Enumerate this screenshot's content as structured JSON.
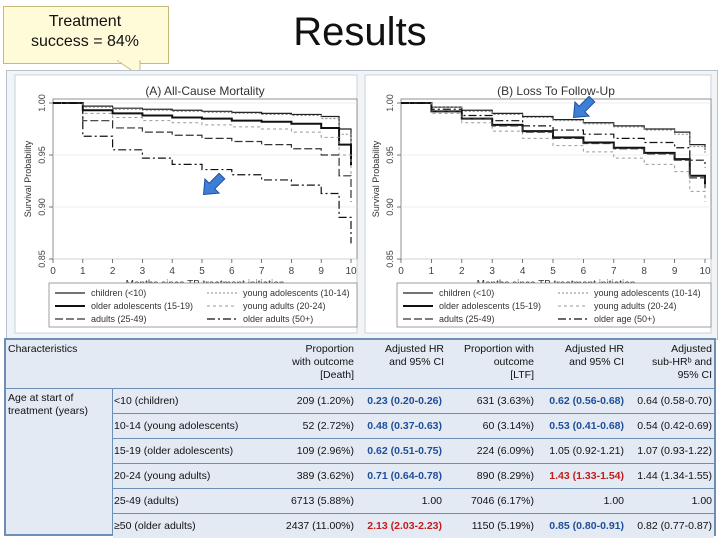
{
  "title": "Results",
  "callout": {
    "line1": "Treatment",
    "line2": "success = 84%"
  },
  "colors": {
    "highlight_blue": "#1f4e9a",
    "highlight_red": "#c31c1c",
    "arrow": "#3d7fd6",
    "table_bg": "#5f82aa"
  },
  "chart_data": [
    {
      "type": "line",
      "title": "(A) All-Cause Mortality",
      "xlabel": "Months since TB treatment initiation",
      "ylabel": "Survival Probability",
      "xlim": [
        0,
        10
      ],
      "ylim": [
        0.85,
        1.0
      ],
      "xticks": [
        0,
        1,
        2,
        3,
        4,
        5,
        6,
        7,
        8,
        9,
        10
      ],
      "yticks": [
        "0.85",
        "0.90",
        "0.95",
        "1.00"
      ],
      "legend": [
        "children (<10)",
        "young adolescents (10-14)",
        "older adolescents (15-19)",
        "young adults (20-24)",
        "adults (25-49)",
        "older adults (50+)"
      ],
      "series": [
        {
          "name": "children (<10)",
          "x": [
            0,
            1,
            2,
            3,
            4,
            5,
            6,
            7,
            8,
            9,
            9.6,
            10
          ],
          "y": [
            1.0,
            0.997,
            0.995,
            0.994,
            0.993,
            0.992,
            0.991,
            0.99,
            0.989,
            0.987,
            0.975,
            0.96
          ]
        },
        {
          "name": "young adolescents (10-14)",
          "x": [
            0,
            1,
            2,
            3,
            4,
            5,
            6,
            7,
            8,
            9,
            9.6,
            10
          ],
          "y": [
            1.0,
            0.996,
            0.994,
            0.993,
            0.992,
            0.991,
            0.99,
            0.989,
            0.988,
            0.985,
            0.97,
            0.955
          ]
        },
        {
          "name": "older adolescents (15-19)",
          "x": [
            0,
            1,
            2,
            3,
            4,
            5,
            6,
            7,
            8,
            9,
            9.6,
            10
          ],
          "y": [
            1.0,
            0.993,
            0.99,
            0.988,
            0.986,
            0.985,
            0.983,
            0.982,
            0.98,
            0.976,
            0.96,
            0.94
          ]
        },
        {
          "name": "young adults (20-24)",
          "x": [
            0,
            1,
            2,
            3,
            4,
            5,
            6,
            7,
            8,
            9,
            9.6,
            10
          ],
          "y": [
            1.0,
            0.99,
            0.986,
            0.983,
            0.981,
            0.979,
            0.977,
            0.975,
            0.972,
            0.967,
            0.95,
            0.93
          ]
        },
        {
          "name": "adults (25-49)",
          "x": [
            0,
            1,
            2,
            3,
            4,
            5,
            6,
            7,
            8,
            9,
            9.6,
            10
          ],
          "y": [
            1.0,
            0.983,
            0.976,
            0.972,
            0.969,
            0.966,
            0.963,
            0.96,
            0.956,
            0.95,
            0.93,
            0.905
          ]
        },
        {
          "name": "older adults (50+)",
          "x": [
            0,
            1,
            2,
            3,
            4,
            5,
            6,
            7,
            8,
            9,
            9.6,
            10
          ],
          "y": [
            1.0,
            0.968,
            0.955,
            0.947,
            0.941,
            0.936,
            0.931,
            0.926,
            0.921,
            0.913,
            0.89,
            0.865
          ]
        }
      ]
    },
    {
      "type": "line",
      "title": "(B) Loss To Follow-Up",
      "xlabel": "Months since TB treatment initiation",
      "ylabel": "Survival Probability",
      "xlim": [
        0,
        10
      ],
      "ylim": [
        0.85,
        1.0
      ],
      "xticks": [
        0,
        1,
        2,
        3,
        4,
        5,
        6,
        7,
        8,
        9,
        10
      ],
      "yticks": [
        "0.85",
        "0.90",
        "0.95",
        "1.00"
      ],
      "legend": [
        "children (<10)",
        "young adolescents (10-14)",
        "older adolescents (15-19)",
        "young adults (20-24)",
        "adults (25-49)",
        "older age (50+)"
      ],
      "series": [
        {
          "name": "children (<10)",
          "x": [
            0,
            1,
            2,
            3,
            4,
            5,
            6,
            7,
            8,
            9,
            9.5,
            10
          ],
          "y": [
            1.0,
            0.996,
            0.993,
            0.99,
            0.987,
            0.984,
            0.981,
            0.978,
            0.975,
            0.972,
            0.96,
            0.955
          ]
        },
        {
          "name": "young adolescents (10-14)",
          "x": [
            0,
            1,
            2,
            3,
            4,
            5,
            6,
            7,
            8,
            9,
            9.5,
            10
          ],
          "y": [
            1.0,
            0.996,
            0.992,
            0.989,
            0.986,
            0.983,
            0.98,
            0.977,
            0.974,
            0.97,
            0.958,
            0.952
          ]
        },
        {
          "name": "older adolescents (15-19)",
          "x": [
            0,
            1,
            2,
            3,
            4,
            5,
            6,
            7,
            8,
            9,
            9.5,
            10
          ],
          "y": [
            1.0,
            0.992,
            0.985,
            0.979,
            0.973,
            0.967,
            0.962,
            0.957,
            0.952,
            0.946,
            0.93,
            0.922
          ]
        },
        {
          "name": "young adults (20-24)",
          "x": [
            0,
            1,
            2,
            3,
            4,
            5,
            6,
            7,
            8,
            9,
            9.5,
            10
          ],
          "y": [
            1.0,
            0.99,
            0.981,
            0.973,
            0.966,
            0.959,
            0.953,
            0.947,
            0.941,
            0.934,
            0.915,
            0.905
          ]
        },
        {
          "name": "adults (25-49)",
          "x": [
            0,
            1,
            2,
            3,
            4,
            5,
            6,
            7,
            8,
            9,
            9.5,
            10
          ],
          "y": [
            1.0,
            0.992,
            0.985,
            0.978,
            0.972,
            0.966,
            0.961,
            0.956,
            0.951,
            0.945,
            0.928,
            0.918
          ]
        },
        {
          "name": "older age (50+)",
          "x": [
            0,
            1,
            2,
            3,
            4,
            5,
            6,
            7,
            8,
            9,
            9.5,
            10
          ],
          "y": [
            1.0,
            0.994,
            0.988,
            0.983,
            0.978,
            0.974,
            0.97,
            0.966,
            0.962,
            0.957,
            0.945,
            0.938
          ]
        }
      ]
    }
  ],
  "table": {
    "headers": {
      "characteristics": "Characteristics",
      "prop_death": [
        "Proportion",
        "with outcome",
        "[Death]"
      ],
      "hr_death": [
        "Adjusted HR",
        "and 95% CI"
      ],
      "prop_ltf": [
        "Proportion with",
        "outcome",
        "[LTF]"
      ],
      "hr_ltf": [
        "Adjusted HR",
        "and 95% CI"
      ],
      "subhr": [
        "Adjusted",
        "sub-HRᵇ and",
        "95% CI"
      ]
    },
    "row_group": [
      "Age at start of",
      "treatment (years)"
    ],
    "rows": [
      {
        "label": "<10 (children)",
        "prop_death": "209 (1.20%)",
        "hr_death": "0.23 (0.20-0.26)",
        "hr_death_style": "blue",
        "prop_ltf": "631 (3.63%)",
        "hr_ltf": "0.62 (0.56-0.68)",
        "hr_ltf_style": "blue",
        "subhr": "0.64 (0.58-0.70)"
      },
      {
        "label": "10-14 (young adolescents)",
        "prop_death": "52 (2.72%)",
        "hr_death": "0.48 (0.37-0.63)",
        "hr_death_style": "blue",
        "prop_ltf": "60 (3.14%)",
        "hr_ltf": "0.53 (0.41-0.68)",
        "hr_ltf_style": "blue",
        "subhr": "0.54 (0.42-0.69)"
      },
      {
        "label": "15-19 (older adolescents)",
        "prop_death": "109 (2.96%)",
        "hr_death": "0.62 (0.51-0.75)",
        "hr_death_style": "blue",
        "prop_ltf": "224 (6.09%)",
        "hr_ltf": "1.05 (0.92-1.21)",
        "hr_ltf_style": "plain",
        "subhr": "1.07 (0.93-1.22)"
      },
      {
        "label": "20-24 (young adults)",
        "prop_death": "389 (3.62%)",
        "hr_death": "0.71 (0.64-0.78)",
        "hr_death_style": "blue",
        "prop_ltf": "890 (8.29%)",
        "hr_ltf": "1.43 (1.33-1.54)",
        "hr_ltf_style": "red",
        "subhr": "1.44 (1.34-1.55)"
      },
      {
        "label": "25-49 (adults)",
        "prop_death": "6713 (5.88%)",
        "hr_death": "1.00",
        "hr_death_style": "plain",
        "prop_ltf": "7046 (6.17%)",
        "hr_ltf": "1.00",
        "hr_ltf_style": "plain",
        "subhr": "1.00"
      },
      {
        "label": "≥50 (older adults)",
        "prop_death": "2437 (11.00%)",
        "hr_death": "2.13 (2.03-2.23)",
        "hr_death_style": "red",
        "prop_ltf": "1150 (5.19%)",
        "hr_ltf": "0.85 (0.80-0.91)",
        "hr_ltf_style": "blue",
        "subhr": "0.82 (0.77-0.87)"
      }
    ]
  }
}
